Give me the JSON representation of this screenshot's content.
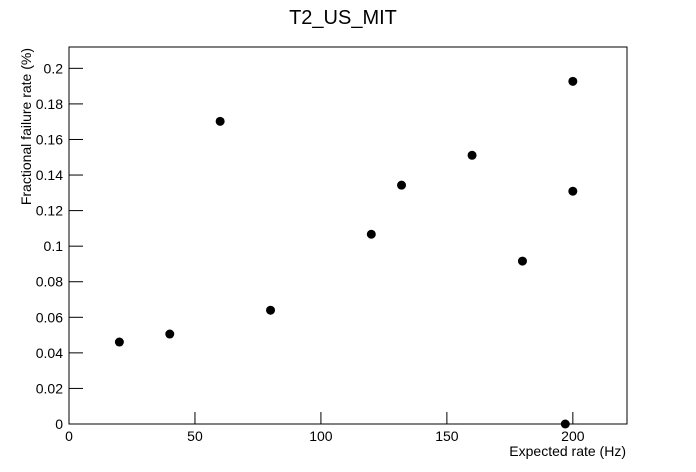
{
  "chart_data": {
    "type": "scatter",
    "title": "T2_US_MIT",
    "x_label": "Expected rate (Hz)",
    "y_label": "Fractional failure rate (%)",
    "series": [
      {
        "color": "#000000",
        "x": [
          20,
          40,
          60,
          80,
          120,
          132,
          160,
          180,
          200,
          200,
          197
        ],
        "values": [
          0.0461,
          0.0506,
          0.1702,
          0.064,
          0.1067,
          0.1343,
          0.1511,
          0.0916,
          0.1927,
          0.1309,
          0
        ]
      }
    ],
    "xlim": [
      0,
      221.5
    ],
    "xticks": [
      0,
      50,
      100,
      150,
      200
    ],
    "ylim": [
      0,
      0.212
    ],
    "yticks": [
      0,
      0.02,
      0.04,
      0.06,
      0.08,
      0.1,
      0.12,
      0.14,
      0.16,
      0.18,
      0.2
    ]
  }
}
